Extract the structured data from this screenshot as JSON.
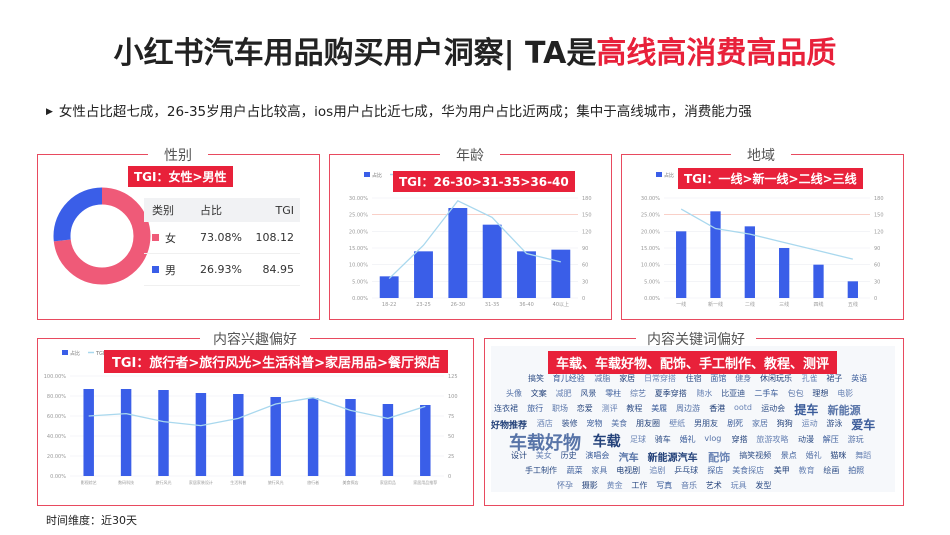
{
  "title": {
    "prefix": "小红书汽车用品购买用户洞察| TA是",
    "highlight": "高线高消费高品质"
  },
  "summary": "女性占比超七成，26-35岁用户占比较高，ios用户占比近七成，华为用户占比近两成；集中于高线城市，消费能力强",
  "colors": {
    "accent": "#e8213a",
    "bar": "#3a5ee8",
    "line": "#a9d8ee",
    "female": "#ef5a78",
    "male": "#3a5ee8"
  },
  "gender": {
    "title": "性别",
    "tag": "TGI：女性>男性",
    "headers": [
      "类别",
      "占比",
      "TGI"
    ],
    "rows": [
      {
        "label": "女",
        "share": "73.08%",
        "tgi": "108.12"
      },
      {
        "label": "男",
        "share": "26.93%",
        "tgi": "84.95"
      }
    ]
  },
  "age": {
    "title": "年龄",
    "tag": "TGI：26-30>31-35>36-40"
  },
  "region": {
    "title": "地域",
    "tag": "TGI：一线>新一线>二线>三线"
  },
  "interest": {
    "title": "内容兴趣偏好",
    "tag": "TGI：旅行者>旅行风光>生活科普>家居用品>餐厅探店"
  },
  "keywords": {
    "title": "内容关键词偏好",
    "tag": "车载、车载好物、配饰、手工制作、教程、测评",
    "words": [
      "搞笑",
      "育儿经验",
      "减脂",
      "家居",
      "日常穿搭",
      "住宿",
      "面馆",
      "健身",
      "休闲玩乐",
      "孔雀",
      "裙子",
      "英语",
      "头像",
      "文案",
      "减肥",
      "风景",
      "零柱",
      "综艺",
      "夏季穿搭",
      "随水",
      "比亚迪",
      "二手车",
      "包包",
      "理想",
      "电影",
      "连衣裙",
      "旅行",
      "职场",
      "恋爱",
      "测评",
      "教程",
      "美履",
      "周边游",
      "香港",
      "ootd",
      "运动会",
      "提车",
      "新能源",
      "好物推荐",
      "酒店",
      "装修",
      "宠物",
      "美食",
      "朋友圈",
      "壁纸",
      "男朋友",
      "剧死",
      "家居",
      "狗狗",
      "运动",
      "游泳",
      "爱车",
      "车载好物",
      "车载",
      "足球",
      "骑车",
      "婚礼",
      "vlog",
      "穿搭",
      "旅游攻略",
      "动漫",
      "解压",
      "游玩",
      "设计",
      "美女",
      "历史",
      "演唱会",
      "汽车",
      "新能源汽车",
      "配饰",
      "搞笑视频",
      "景点",
      "婚礼",
      "猫咪",
      "舞蹈",
      "手工制作",
      "蔬菜",
      "家具",
      "电视剧",
      "追剧",
      "乒乓球",
      "探店",
      "美食探店",
      "美甲",
      "教育",
      "绘画",
      "拍照",
      "怀孕",
      "摄影",
      "黄金",
      "工作",
      "写真",
      "音乐",
      "艺术",
      "玩具",
      "发型"
    ]
  },
  "footer": "时间维度：近30天",
  "chart_data": [
    {
      "type": "pie",
      "title": "性别",
      "categories": [
        "女",
        "男"
      ],
      "values": [
        73.08,
        26.93
      ],
      "tgi": [
        108.12,
        84.95
      ]
    },
    {
      "type": "bar",
      "title": "年龄",
      "legend": [
        "占比",
        "TGI"
      ],
      "categories": [
        "18-22",
        "23-25",
        "26-30",
        "31-35",
        "36-40",
        "40以上"
      ],
      "series": [
        {
          "name": "占比",
          "values": [
            6.5,
            14.0,
            27.0,
            22.0,
            14.0,
            14.5
          ]
        },
        {
          "name": "TGI",
          "values": [
            35,
            95,
            175,
            145,
            80,
            65
          ]
        }
      ],
      "ylim": [
        0,
        30
      ],
      "y_ticks": [
        "0.00%",
        "5.00%",
        "10.00%",
        "15.00%",
        "20.00%",
        "25.00%",
        "30.00%"
      ],
      "y2lim": [
        0,
        180
      ],
      "y2_ticks": [
        "0",
        "30",
        "60",
        "90",
        "120",
        "150",
        "180"
      ]
    },
    {
      "type": "bar",
      "title": "地域",
      "legend": [
        "占比",
        "TGI"
      ],
      "categories": [
        "一线",
        "新一线",
        "二线",
        "三线",
        "四线",
        "五线"
      ],
      "series": [
        {
          "name": "占比",
          "values": [
            20.0,
            26.0,
            21.5,
            15.0,
            10.0,
            5.0
          ]
        },
        {
          "name": "TGI",
          "values": [
            160,
            125,
            115,
            100,
            85,
            70
          ]
        }
      ],
      "ylim": [
        0,
        30
      ],
      "y_ticks": [
        "0.00%",
        "5.00%",
        "10.00%",
        "15.00%",
        "20.00%",
        "25.00%",
        "30.00%"
      ],
      "y2lim": [
        0,
        180
      ],
      "y2_ticks": [
        "0",
        "30",
        "60",
        "90",
        "120",
        "150",
        "180"
      ]
    },
    {
      "type": "bar",
      "title": "内容兴趣偏好",
      "legend": [
        "占比",
        "TGI"
      ],
      "categories": [
        "影视综艺",
        "数码科技",
        "旅行风光",
        "家居家装设计",
        "生活科普",
        "旅行风光",
        "旅行者",
        "美食探店",
        "家居用品",
        "家居用品推荐"
      ],
      "series": [
        {
          "name": "占比",
          "values": [
            87,
            87,
            86,
            83,
            82,
            79,
            78,
            77,
            72,
            71
          ]
        },
        {
          "name": "TGI",
          "values": [
            75,
            78,
            68,
            63,
            72,
            90,
            98,
            82,
            72,
            87
          ]
        }
      ],
      "ylim": [
        0,
        100
      ],
      "y_ticks": [
        "0.00%",
        "20.00%",
        "40.00%",
        "60.00%",
        "80.00%",
        "100.00%"
      ],
      "y2lim": [
        0,
        125
      ],
      "y2_ticks": [
        "0",
        "25",
        "50",
        "75",
        "100",
        "125"
      ]
    }
  ]
}
